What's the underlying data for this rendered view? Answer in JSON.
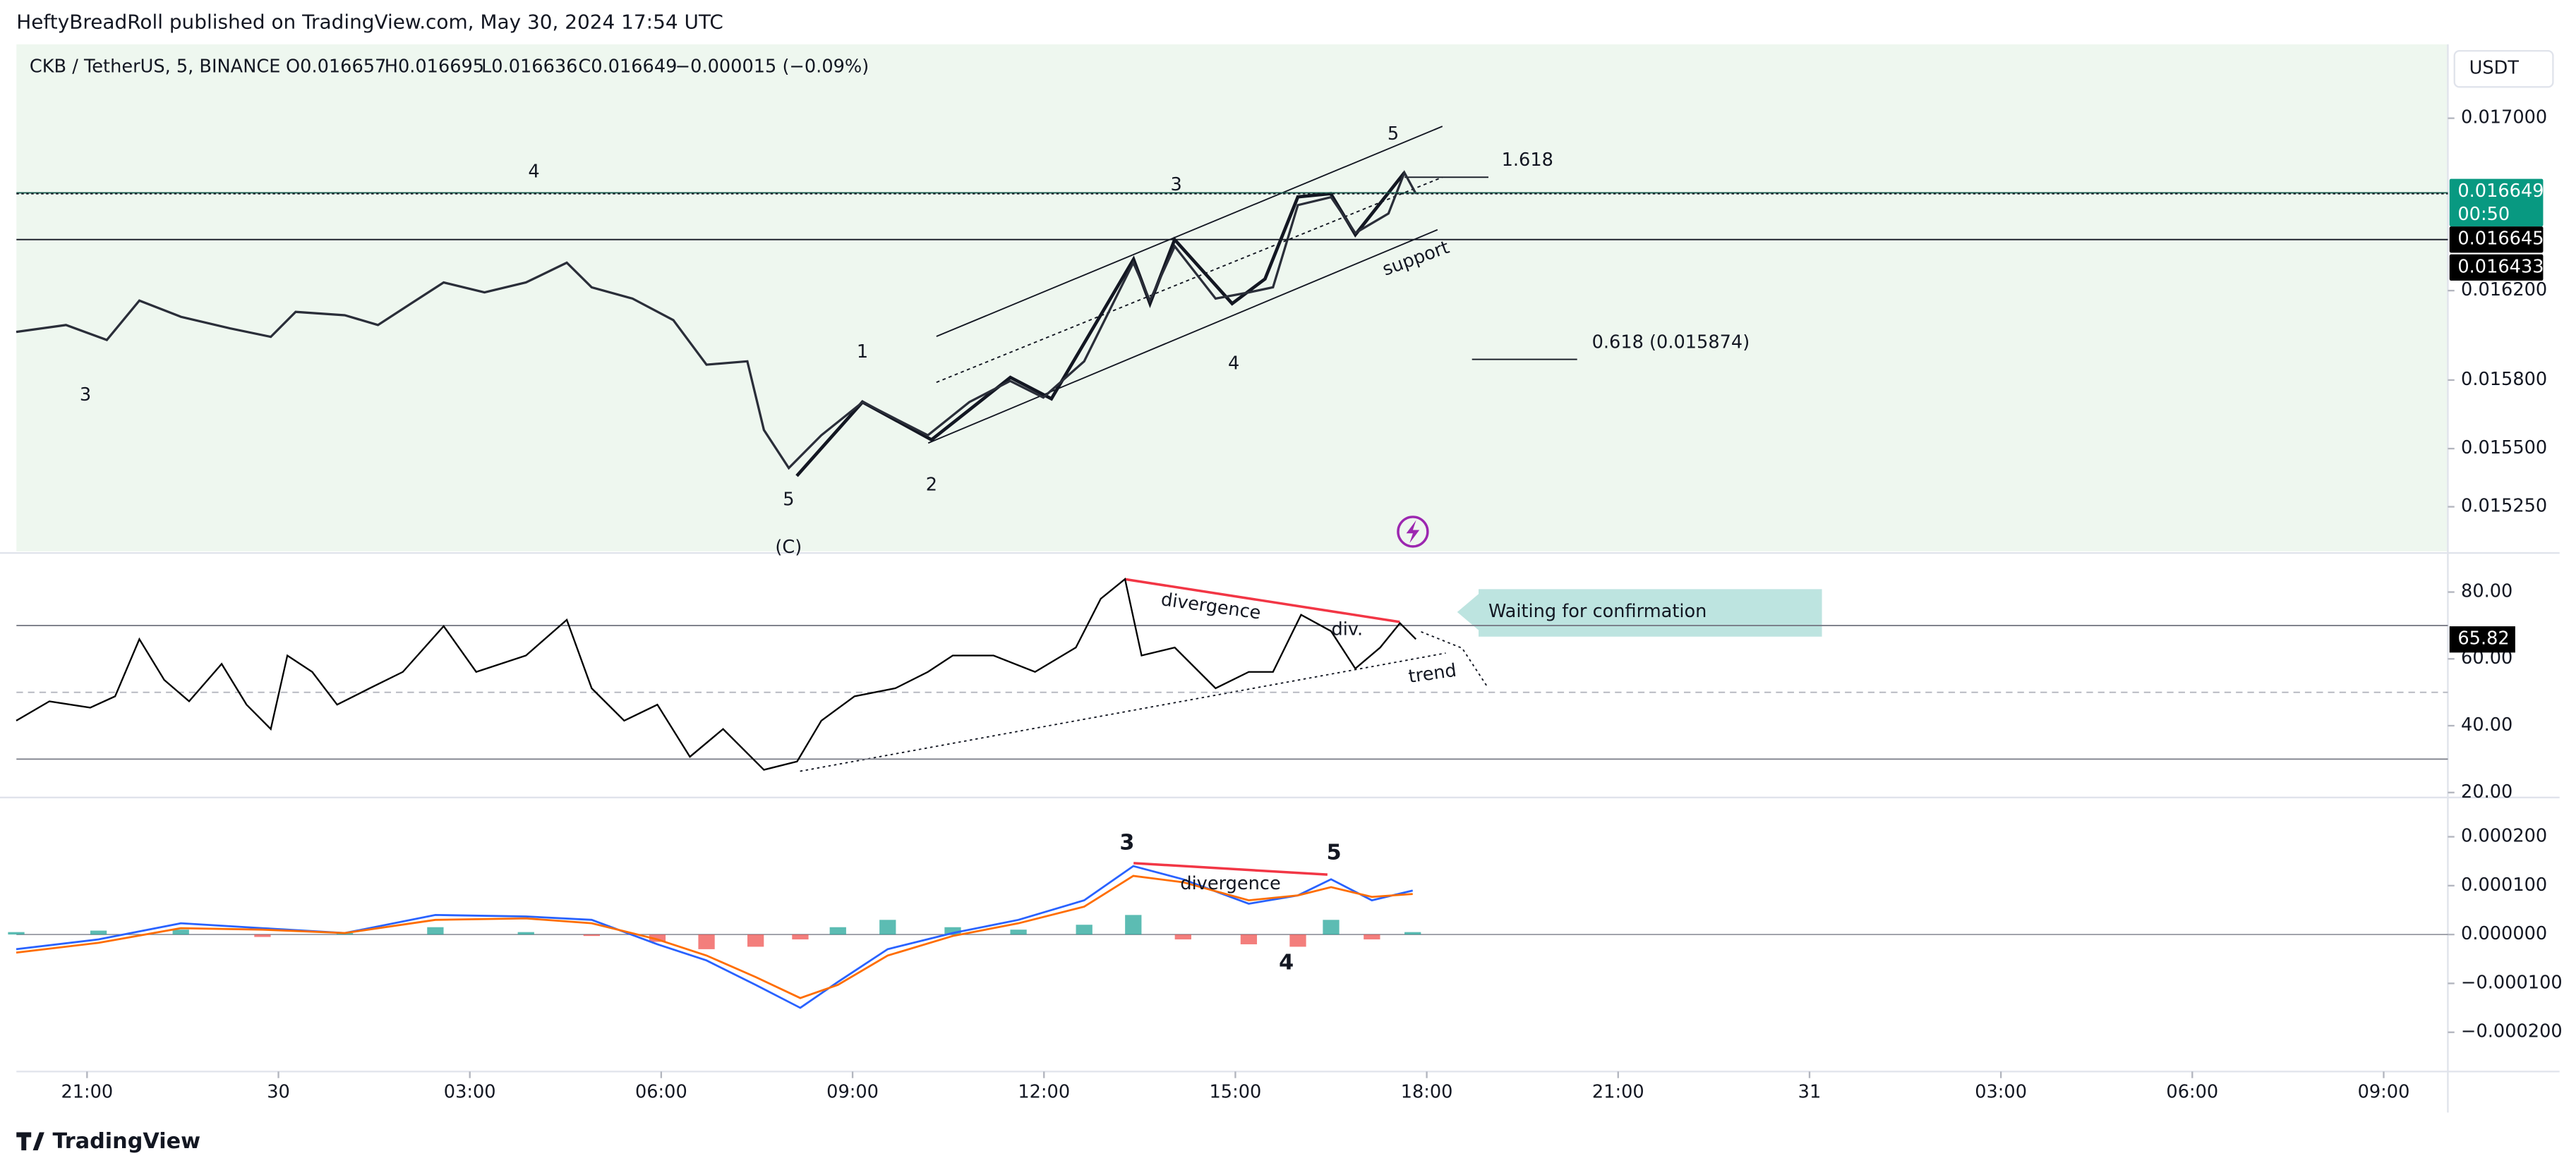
{
  "header": {
    "publisher": "HeftyBreadRoll published on TradingView.com, May 30, 2024 17:54 UTC",
    "footer": "TradingView"
  },
  "symbol": {
    "name": "CKB / TetherUS, 5, BINANCE",
    "open": "O0.016657",
    "high": "H0.016695",
    "low": "L0.016636",
    "close": "C0.016649",
    "change": "−0.000015 (−0.09%)"
  },
  "chart_data": [
    {
      "type": "line",
      "log_scale": true,
      "color": "#2a2e39",
      "axis_unit": "USDT",
      "countdown": "00:50",
      "x": [
        -1.11,
        -0.33,
        0.31,
        0.82,
        1.47,
        2.24,
        2.88,
        3.27,
        4.04,
        4.56,
        5.07,
        5.59,
        6.23,
        6.88,
        7.52,
        7.91,
        8.55,
        9.19,
        9.71,
        10.35,
        10.61,
        11.0,
        11.51,
        12.16,
        12.67,
        13.18,
        13.83,
        14.47,
        14.99,
        15.63,
        16.4,
        16.66,
        17.05,
        17.69,
        18.21,
        18.59,
        18.98,
        19.5,
        19.88,
        20.4,
        20.65,
        20.83
      ],
      "values": [
        0.016014,
        0.016045,
        0.015978,
        0.016155,
        0.016082,
        0.01603,
        0.015992,
        0.016104,
        0.016089,
        0.016045,
        0.01614,
        0.016237,
        0.016192,
        0.016237,
        0.016327,
        0.016215,
        0.016164,
        0.016067,
        0.015868,
        0.015883,
        0.015581,
        0.015416,
        0.015558,
        0.015703,
        0.01563,
        0.015558,
        0.015703,
        0.015796,
        0.015723,
        0.015883,
        0.016327,
        0.016155,
        0.016402,
        0.016164,
        0.016192,
        0.016215,
        0.016592,
        0.016629,
        0.016463,
        0.016553,
        0.016743,
        0.016645
      ],
      "xlim": [
        -1.107,
        37.006
      ],
      "ylim": [
        0.015061,
        0.017355
      ],
      "yticks": [
        {
          "value": 0.017,
          "label": "0.017000"
        },
        {
          "value": 0.0162,
          "label": "0.016200"
        },
        {
          "value": 0.0158,
          "label": "0.015800"
        },
        {
          "value": 0.0155,
          "label": "0.015500"
        },
        {
          "value": 0.01525,
          "label": "0.015250"
        }
      ],
      "price_lines": [
        0.016649,
        0.016645,
        0.016433
      ],
      "annotations": [
        "4",
        "3",
        "1",
        "5",
        "(C)",
        "2",
        "3",
        "4",
        "5",
        "1.618",
        "0.618 (0.015874)",
        "support"
      ]
    },
    {
      "type": "line",
      "color": "#000000",
      "x": [
        -1.11,
        -0.59,
        0.05,
        0.44,
        0.82,
        1.21,
        1.6,
        2.11,
        2.5,
        2.88,
        3.14,
        3.53,
        3.92,
        4.43,
        4.95,
        5.59,
        6.1,
        6.88,
        7.52,
        7.91,
        8.42,
        8.94,
        9.45,
        9.97,
        10.61,
        11.13,
        11.51,
        12.03,
        12.67,
        13.18,
        13.57,
        14.21,
        14.86,
        15.5,
        15.89,
        16.27,
        16.53,
        17.05,
        17.69,
        18.21,
        18.59,
        19.03,
        19.5,
        19.88,
        20.27,
        20.58,
        20.83
      ],
      "values": [
        41.5,
        47.3,
        45.4,
        48.8,
        65.9,
        53.7,
        47.3,
        58.5,
        46.3,
        39.0,
        61.0,
        56.1,
        46.3,
        51.2,
        56.1,
        69.8,
        56.1,
        61.0,
        71.7,
        51.2,
        41.5,
        46.3,
        30.7,
        39.0,
        26.8,
        29.3,
        41.5,
        48.8,
        51.2,
        56.1,
        61.0,
        61.0,
        56.1,
        63.4,
        78.0,
        83.9,
        61.0,
        63.4,
        51.2,
        56.1,
        56.1,
        73.2,
        68.3,
        57.1,
        63.4,
        70.7,
        65.9
      ],
      "xlim": [
        -1.107,
        37.006
      ],
      "ylim": [
        19.0,
        91.2
      ],
      "yticks": [
        {
          "value": 80,
          "label": "80.00"
        },
        {
          "value": 60,
          "label": "60.00"
        },
        {
          "value": 40,
          "label": "40.00"
        },
        {
          "value": 20,
          "label": "20.00"
        }
      ],
      "levels": [
        70,
        50,
        30
      ],
      "last_value": 65.82,
      "annotations": [
        "divergence",
        "div.",
        "trend",
        "Waiting for confirmation"
      ]
    },
    {
      "type": "macd",
      "x": [
        -1.11,
        0.18,
        1.47,
        2.75,
        4.04,
        5.46,
        6.88,
        7.91,
        8.94,
        9.71,
        10.48,
        11.18,
        11.77,
        12.55,
        13.57,
        14.6,
        15.63,
        16.4,
        17.18,
        18.21,
        18.98,
        19.5,
        20.14,
        20.78
      ],
      "series": [
        {
          "color": "#2962ff",
          "values": [
            -3e-05,
            -1e-05,
            2.3e-05,
            1.3e-05,
            3e-06,
            4e-05,
            3.7e-05,
            3e-05,
            -2e-05,
            -5.3e-05,
            -0.000103,
            -0.00015,
            -9.7e-05,
            -3e-05,
            3e-06,
            3e-05,
            7e-05,
            0.00014,
            0.000113,
            6.3e-05,
            8e-05,
            0.000113,
            7e-05,
            9e-05
          ]
        },
        {
          "color": "#ff6d00",
          "values": [
            -3.7e-05,
            -1.7e-05,
            1.3e-05,
            1e-05,
            3e-06,
            3e-05,
            3.3e-05,
            2.3e-05,
            -1e-05,
            -4.3e-05,
            -8.7e-05,
            -0.00013,
            -0.000103,
            -4.3e-05,
            -3e-06,
            2.3e-05,
            5.7e-05,
            0.00012,
            0.000107,
            7e-05,
            8e-05,
            9.7e-05,
            7.7e-05,
            8.3e-05
          ]
        }
      ],
      "histogram": [
        5e-06,
        8e-06,
        1e-05,
        -5e-06,
        3e-06,
        1.5e-05,
        5e-06,
        -3e-06,
        -1.5e-05,
        -3e-05,
        -2.5e-05,
        -1e-05,
        1.5e-05,
        3e-05,
        1.5e-05,
        1e-05,
        2e-05,
        4e-05,
        -1e-05,
        -2e-05,
        -2.5e-05,
        3e-05,
        -1e-05,
        5e-06
      ],
      "up_color": "#26a69a",
      "down_color": "#ef5350",
      "xlim": [
        -1.107,
        37.006
      ],
      "ylim": [
        -0.000277,
        0.000277
      ],
      "yticks": [
        {
          "value": 0.0002,
          "label": "0.000200"
        },
        {
          "value": 0.0001,
          "label": "0.000100"
        },
        {
          "value": 0,
          "label": "0.000000"
        },
        {
          "value": -0.0001,
          "label": "−0.000100"
        },
        {
          "value": -0.0002,
          "label": "−0.000200"
        }
      ],
      "xticks": [
        {
          "value": 0,
          "label": "21:00"
        },
        {
          "value": 3,
          "label": "30"
        },
        {
          "value": 6,
          "label": "03:00"
        },
        {
          "value": 9,
          "label": "06:00"
        },
        {
          "value": 12,
          "label": "09:00"
        },
        {
          "value": 15,
          "label": "12:00"
        },
        {
          "value": 18,
          "label": "15:00"
        },
        {
          "value": 21,
          "label": "18:00"
        },
        {
          "value": 24,
          "label": "21:00"
        },
        {
          "value": 27,
          "label": "31"
        },
        {
          "value": 30,
          "label": "03:00"
        },
        {
          "value": 33,
          "label": "06:00"
        },
        {
          "value": 36,
          "label": "09:00"
        }
      ],
      "annotations": [
        "3",
        "5",
        "divergence",
        "4"
      ]
    }
  ]
}
